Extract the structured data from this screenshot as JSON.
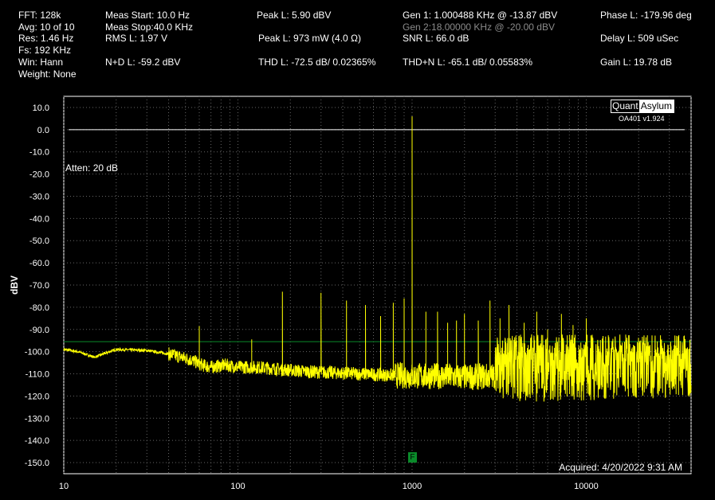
{
  "stats": {
    "fft": "FFT:  128k",
    "avg": "Avg: 10 of 10",
    "res": "Res: 1.46 Hz",
    "fs": "Fs: 192 KHz",
    "win": "Win: Hann",
    "weight": "Weight: None",
    "meas_start": "Meas Start: 10.0 Hz",
    "meas_stop": "Meas Stop:40.0 KHz",
    "rms": "RMS L: 1.97 V",
    "nd": "N+D L: -59.2 dBV",
    "peak_dbv": "Peak L: 5.90 dBV",
    "peak_mw": "Peak L: 973 mW (4.0 Ω)",
    "thd": "THD L: -72.5 dB/ 0.02365%",
    "gen1": "Gen 1: 1.000488 KHz @ -13.87  dBV",
    "gen2": "Gen 2:18.00000 KHz @ -20.00  dBV",
    "snr": "SNR L: 66.0 dB",
    "thdn": "THD+N L: -65.1 dB/ 0.05583%",
    "phase": "Phase L: -179.96 deg",
    "delay": "Delay L: 509 uSec",
    "gain": "Gain L: 19.78 dB"
  },
  "logo": {
    "part1": "Quant",
    "part2": "Asylum",
    "version": "OA401 v1.924"
  },
  "marker_label": "F",
  "colors": {
    "trace": "#ffff00",
    "grid": "#666666",
    "ref_line": "#ffffff",
    "noise_line": "#0a8a2a",
    "marker": "#0a8a2a"
  },
  "chart_data": {
    "type": "line",
    "xscale": "log",
    "xlim": [
      10,
      40000
    ],
    "ylim": [
      -155,
      15
    ],
    "xticks": [
      "10",
      "100",
      "1000",
      "10000"
    ],
    "xtick_values": [
      10,
      100,
      1000,
      10000
    ],
    "yticks": [
      "10.0",
      "0.0",
      "-10.0",
      "-20.0",
      "-30.0",
      "-40.0",
      "-50.0",
      "-60.0",
      "-70.0",
      "-80.0",
      "-90.0",
      "-100.0",
      "-110.0",
      "-120.0",
      "-130.0",
      "-140.0",
      "-150.0"
    ],
    "ytick_values": [
      10,
      0,
      -10,
      -20,
      -30,
      -40,
      -50,
      -60,
      -70,
      -80,
      -90,
      -100,
      -110,
      -120,
      -130,
      -140,
      -150
    ],
    "ylabel": "dBV",
    "atten_label": "Atten: 20 dB",
    "acquired": "Acquired: 4/20/2022  9:31 AM",
    "ref_line_db": 0,
    "noise_line_db": -95.5,
    "marker_freq": 1000,
    "baseline": [
      [
        10,
        -99
      ],
      [
        12,
        -100
      ],
      [
        15,
        -102.5
      ],
      [
        20,
        -99
      ],
      [
        30,
        -99.5
      ],
      [
        40,
        -101
      ],
      [
        50,
        -103
      ],
      [
        55,
        -104
      ],
      [
        62,
        -106
      ],
      [
        70,
        -107
      ],
      [
        85,
        -106
      ],
      [
        100,
        -107
      ],
      [
        130,
        -107
      ],
      [
        180,
        -108
      ],
      [
        250,
        -109
      ],
      [
        350,
        -109.5
      ],
      [
        500,
        -110
      ],
      [
        700,
        -110.5
      ],
      [
        1000,
        -111
      ],
      [
        1500,
        -111
      ],
      [
        2000,
        -111.5
      ],
      [
        3000,
        -111
      ],
      [
        5000,
        -111
      ],
      [
        8000,
        -110
      ],
      [
        12000,
        -110
      ],
      [
        20000,
        -109
      ],
      [
        40000,
        -109
      ]
    ],
    "spurs": [
      [
        60,
        -88.5
      ],
      [
        120,
        -94.5
      ],
      [
        180,
        -73
      ],
      [
        300,
        -73.5
      ],
      [
        420,
        -77
      ],
      [
        540,
        -79
      ],
      [
        660,
        -84
      ],
      [
        780,
        -78
      ],
      [
        900,
        -76
      ],
      [
        1000,
        6
      ],
      [
        1200,
        -82
      ],
      [
        1400,
        -82
      ],
      [
        1600,
        -87
      ],
      [
        1800,
        -86
      ],
      [
        2000,
        -83
      ],
      [
        2400,
        -86
      ],
      [
        2800,
        -77
      ],
      [
        3200,
        -85
      ],
      [
        3600,
        -79
      ],
      [
        4400,
        -87
      ],
      [
        5200,
        -82
      ],
      [
        6000,
        -90
      ],
      [
        7200,
        -83
      ],
      [
        8400,
        -88
      ],
      [
        10000,
        -85
      ]
    ]
  }
}
